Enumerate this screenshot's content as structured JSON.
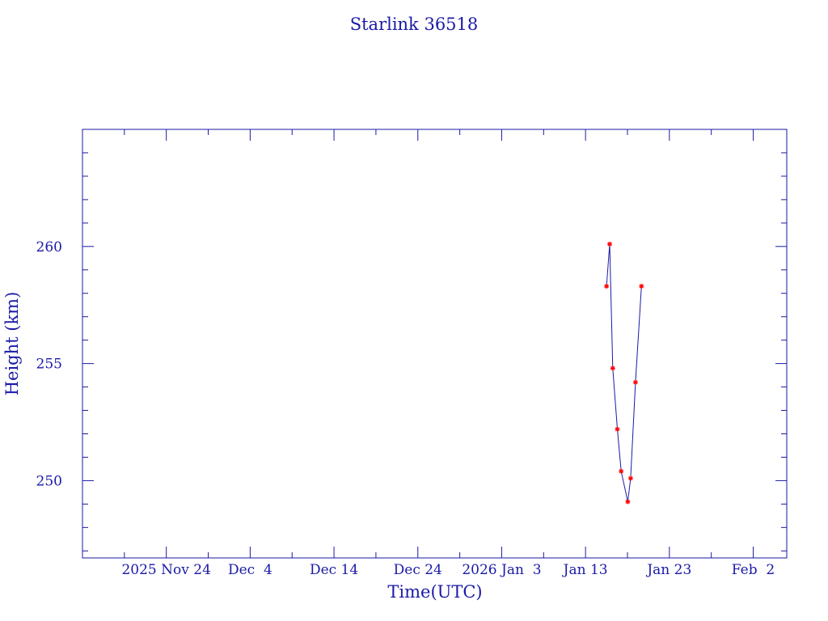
{
  "chart_data": {
    "type": "line",
    "title": "Starlink 36518",
    "xlabel": "Time(UTC)",
    "ylabel": "Height (km)",
    "x_tick_labels": [
      "2025 Nov 24",
      "Dec  4",
      "Dec 14",
      "Dec 24",
      "2026 Jan  3",
      "Jan 13",
      "Jan 23",
      "Feb  2"
    ],
    "x_tick_dates": [
      "2025-11-24",
      "2025-12-04",
      "2025-12-14",
      "2025-12-24",
      "2026-01-03",
      "2026-01-13",
      "2026-01-23",
      "2026-02-02"
    ],
    "xlim": [
      "2025-11-14",
      "2026-02-06"
    ],
    "ylim": [
      246.7,
      265.0
    ],
    "y_ticks": [
      250,
      255,
      260
    ],
    "y_minor_step": 1,
    "grid": false,
    "colors": {
      "axis": "#1a1aa6",
      "line": "#1a1aa6",
      "marker": "#ff0000"
    },
    "series": [
      {
        "points": [
          {
            "x": "2026-01-15 12:00",
            "y": 258.3
          },
          {
            "x": "2026-01-15 21:00",
            "y": 260.1
          },
          {
            "x": "2026-01-16 06:00",
            "y": 254.8
          },
          {
            "x": "2026-01-16 19:00",
            "y": 252.2
          },
          {
            "x": "2026-01-17 06:00",
            "y": 250.4
          },
          {
            "x": "2026-01-18 01:00",
            "y": 249.1
          },
          {
            "x": "2026-01-18 09:00",
            "y": 250.1
          },
          {
            "x": "2026-01-18 23:00",
            "y": 254.2
          },
          {
            "x": "2026-01-19 16:00",
            "y": 258.3
          }
        ]
      }
    ]
  }
}
